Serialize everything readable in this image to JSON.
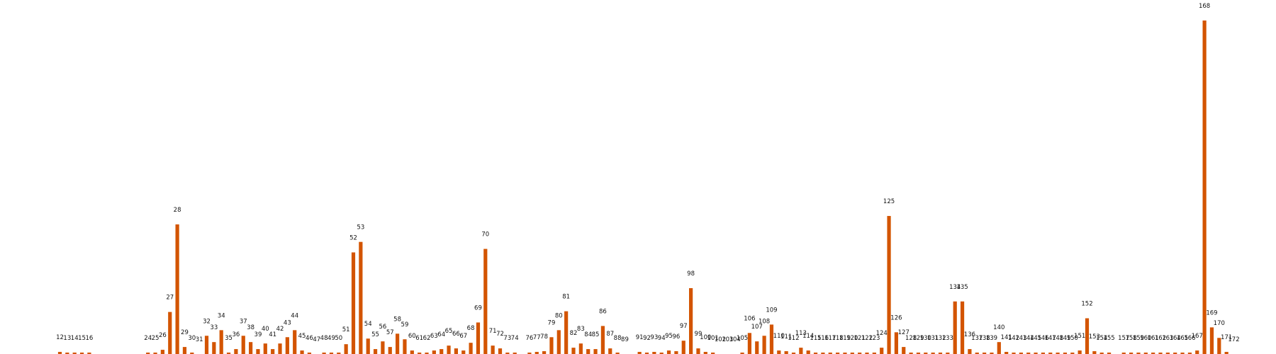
{
  "chart_data": {
    "type": "bar",
    "bar_color": "#d35400",
    "background": "#ffffff",
    "grid": false,
    "axes_visible": false,
    "x": [
      12,
      13,
      14,
      15,
      16,
      24,
      25,
      26,
      27,
      28,
      29,
      30,
      31,
      32,
      33,
      34,
      35,
      36,
      37,
      38,
      39,
      40,
      41,
      42,
      43,
      44,
      45,
      46,
      47,
      48,
      49,
      50,
      51,
      52,
      53,
      54,
      55,
      56,
      57,
      58,
      59,
      60,
      61,
      62,
      63,
      64,
      65,
      66,
      67,
      68,
      69,
      70,
      71,
      72,
      73,
      74,
      76,
      77,
      78,
      79,
      80,
      81,
      82,
      83,
      84,
      85,
      86,
      87,
      88,
      89,
      91,
      92,
      93,
      94,
      95,
      96,
      97,
      98,
      99,
      100,
      101,
      102,
      103,
      104,
      105,
      106,
      107,
      108,
      109,
      110,
      111,
      112,
      113,
      114,
      115,
      116,
      117,
      118,
      119,
      120,
      121,
      122,
      123,
      124,
      125,
      126,
      127,
      128,
      129,
      130,
      131,
      132,
      133,
      134,
      135,
      136,
      137,
      138,
      139,
      140,
      141,
      142,
      143,
      144,
      145,
      146,
      147,
      148,
      149,
      150,
      151,
      152,
      153,
      154,
      155,
      157,
      158,
      159,
      160,
      161,
      162,
      163,
      164,
      165,
      166,
      167,
      168,
      169,
      170,
      171,
      172
    ],
    "labels": [
      "12",
      "13",
      "14",
      "15",
      "16",
      "24",
      "25",
      "26",
      "27",
      "28",
      "29",
      "30",
      "31",
      "32",
      "33",
      "34",
      "35",
      "36",
      "37",
      "38",
      "39",
      "40",
      "41",
      "42",
      "43",
      "44",
      "45",
      "46",
      "47",
      "48",
      "49",
      "50",
      "51",
      "52",
      "53",
      "54",
      "55",
      "56",
      "57",
      "58",
      "59",
      "60",
      "61",
      "62",
      "63",
      "64",
      "65",
      "66",
      "67",
      "68",
      "69",
      "70",
      "71",
      "72",
      "73",
      "74",
      "76",
      "77",
      "78",
      "79",
      "80",
      "81",
      "82",
      "83",
      "84",
      "85",
      "86",
      "87",
      "88",
      "89",
      "91",
      "92",
      "93",
      "94",
      "95",
      "96",
      "97",
      "98",
      "99",
      "100",
      "101",
      "102",
      "103",
      "104",
      "105",
      "106",
      "107",
      "108",
      "109",
      "110",
      "111",
      "112",
      "113",
      "114",
      "115",
      "116",
      "117",
      "118",
      "119",
      "120",
      "121",
      "122",
      "123",
      "124",
      "125",
      "126",
      "127",
      "128",
      "129",
      "130",
      "131",
      "132",
      "133",
      "134",
      "135",
      "136",
      "137",
      "138",
      "139",
      "140",
      "141",
      "142",
      "143",
      "144",
      "145",
      "146",
      "147",
      "148",
      "149",
      "150",
      "151",
      "152",
      "153",
      "154",
      "155",
      "157",
      "158",
      "159",
      "160",
      "161",
      "162",
      "163",
      "164",
      "165",
      "166",
      "167",
      "168",
      "169",
      "170",
      "171",
      "172"
    ],
    "values": [
      3,
      2,
      1,
      2,
      2,
      2,
      2,
      6,
      60,
      185,
      10,
      2,
      0,
      26,
      17,
      34,
      1,
      7,
      26,
      17,
      7,
      15,
      7,
      15,
      24,
      34,
      5,
      2,
      0,
      1,
      2,
      2,
      14,
      145,
      160,
      22,
      7,
      18,
      10,
      29,
      21,
      5,
      1,
      1,
      5,
      7,
      12,
      8,
      5,
      16,
      45,
      150,
      12,
      8,
      1,
      1,
      2,
      3,
      4,
      24,
      34,
      61,
      9,
      15,
      7,
      7,
      40,
      8,
      2,
      0,
      3,
      2,
      3,
      2,
      5,
      4,
      19,
      94,
      8,
      3,
      1,
      0,
      0,
      0,
      2,
      30,
      18,
      26,
      42,
      5,
      4,
      2,
      9,
      5,
      2,
      1,
      1,
      1,
      1,
      1,
      1,
      1,
      1,
      9,
      197,
      31,
      10,
      2,
      2,
      1,
      1,
      1,
      1,
      75,
      75,
      7,
      1,
      1,
      1,
      17,
      3,
      1,
      1,
      1,
      1,
      1,
      1,
      1,
      2,
      2,
      5,
      51,
      4,
      1,
      1,
      1,
      1,
      1,
      1,
      1,
      1,
      1,
      1,
      1,
      1,
      5,
      476,
      38,
      23,
      3,
      0
    ],
    "ylim": [
      0,
      480
    ]
  }
}
